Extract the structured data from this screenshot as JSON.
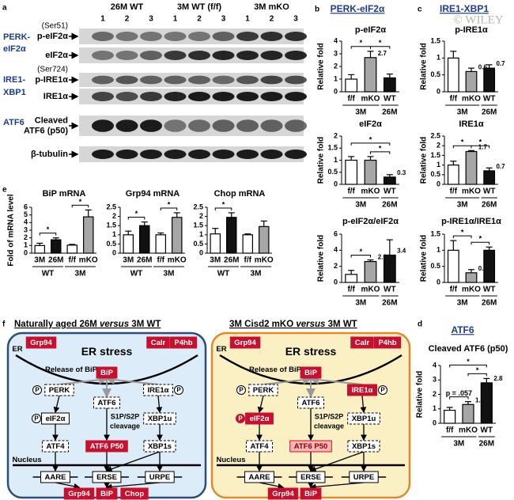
{
  "watermark": "© WILEY",
  "panel_letters": [
    "a",
    "b",
    "c",
    "d",
    "e",
    "f"
  ],
  "sections": {
    "b": "PERK-eIF2α",
    "c": "IRE1-XBP1",
    "d": "ATF6"
  },
  "blot": {
    "groups": [
      {
        "label": "26M WT",
        "lanes": [
          "1",
          "2",
          "3"
        ]
      },
      {
        "label": "3M WT (f/f)",
        "lanes": [
          "1",
          "2",
          "3"
        ]
      },
      {
        "label": "3M mKO",
        "lanes": [
          "1",
          "2",
          "3"
        ]
      }
    ],
    "pathways": [
      [
        "PERK-",
        "eIF2α"
      ],
      [
        "IRE1-",
        "XBP1"
      ],
      [
        "ATF6"
      ]
    ],
    "rows": [
      {
        "label": [
          "p-eIF2α"
        ],
        "note": "(Ser51)"
      },
      {
        "label": [
          "eIF2α"
        ]
      },
      {
        "label": [
          "p-IRE1α"
        ],
        "note": "(Ser724)"
      },
      {
        "label": [
          "IRE1α"
        ]
      },
      {
        "label": [
          "Cleaved",
          "ATF6 (p50)"
        ]
      },
      {
        "label": [
          "β-tubulin"
        ]
      }
    ]
  },
  "chart_data": [
    {
      "type": "bar",
      "title": "p-eIF2α",
      "y_label": "Relative fold",
      "categories": [
        "f/f",
        "mKO",
        "WT"
      ],
      "values": [
        1.0,
        2.7,
        1.1
      ],
      "errors": [
        0.35,
        0.5,
        0.3
      ],
      "value_labels": [
        null,
        "2.7",
        null
      ],
      "colors": [
        "#ffffff",
        "#a6a6a6",
        "#111111"
      ],
      "ylim": [
        0,
        4
      ],
      "yticks": [
        0,
        1,
        2,
        3,
        4
      ],
      "groups": [
        {
          "label": "3M",
          "categories": [
            "f/f",
            "mKO"
          ]
        },
        {
          "label": "26M",
          "categories": [
            "WT"
          ]
        }
      ],
      "significance": [
        {
          "between": [
            "f/f",
            "mKO"
          ],
          "label": "*"
        },
        {
          "between": [
            "mKO",
            "WT"
          ],
          "label": "*"
        }
      ]
    },
    {
      "type": "bar",
      "title": "eIF2α",
      "y_label": "Relative fold",
      "categories": [
        "f/f",
        "mKO",
        "WT"
      ],
      "values": [
        1.0,
        1.0,
        0.3
      ],
      "errors": [
        0.15,
        0.15,
        0.1
      ],
      "value_labels": [
        null,
        null,
        "0.3"
      ],
      "colors": [
        "#ffffff",
        "#a6a6a6",
        "#111111"
      ],
      "ylim": [
        0,
        2
      ],
      "yticks": [
        0,
        0.5,
        1,
        1.5,
        2
      ],
      "groups": [
        {
          "label": "3M",
          "categories": [
            "f/f",
            "mKO"
          ]
        },
        {
          "label": "26M",
          "categories": [
            "WT"
          ]
        }
      ],
      "significance": [
        {
          "between": [
            "mKO",
            "WT"
          ],
          "label": "*"
        },
        {
          "between": [
            "f/f",
            "WT"
          ],
          "label": "*"
        }
      ]
    },
    {
      "type": "bar",
      "title": "p-eIF2α/eIF2α",
      "y_label": "Relative fold",
      "categories": [
        "f/f",
        "mKO",
        "WT"
      ],
      "values": [
        1.0,
        2.6,
        3.4
      ],
      "errors": [
        0.5,
        0.2,
        1.9
      ],
      "value_labels": [
        null,
        "2.6",
        "3.4"
      ],
      "colors": [
        "#ffffff",
        "#a6a6a6",
        "#111111"
      ],
      "ylim": [
        0,
        6
      ],
      "yticks": [
        0,
        2,
        4,
        6
      ],
      "groups": [
        {
          "label": "3M",
          "categories": [
            "f/f",
            "mKO"
          ]
        },
        {
          "label": "26M",
          "categories": [
            "WT"
          ]
        }
      ],
      "significance": [
        {
          "between": [
            "f/f",
            "mKO"
          ],
          "label": "*"
        }
      ]
    },
    {
      "type": "bar",
      "title": "p-IRE1α",
      "y_label": "Relative fold",
      "categories": [
        "f/f",
        "mKO",
        "WT"
      ],
      "values": [
        1.0,
        0.6,
        0.7
      ],
      "errors": [
        0.2,
        0.1,
        0.1
      ],
      "value_labels": [
        null,
        "0.6",
        "0.7"
      ],
      "colors": [
        "#ffffff",
        "#a6a6a6",
        "#111111"
      ],
      "ylim": [
        0,
        1.5
      ],
      "yticks": [
        0,
        0.5,
        1,
        1.5
      ],
      "groups": [
        {
          "label": "3M",
          "categories": [
            "f/f",
            "mKO"
          ]
        },
        {
          "label": "26M",
          "categories": [
            "WT"
          ]
        }
      ]
    },
    {
      "type": "bar",
      "title": "IRE1α",
      "y_label": "Relative fold",
      "categories": [
        "f/f",
        "mKO",
        "WT"
      ],
      "values": [
        1.0,
        1.7,
        0.7
      ],
      "errors": [
        0.2,
        0.05,
        0.15
      ],
      "value_labels": [
        null,
        "1.7",
        "0.7"
      ],
      "colors": [
        "#ffffff",
        "#a6a6a6",
        "#111111"
      ],
      "ylim": [
        0,
        2.5
      ],
      "yticks": [
        0,
        0.5,
        1,
        1.5,
        2,
        2.5
      ],
      "groups": [
        {
          "label": "3M",
          "categories": [
            "f/f",
            "mKO"
          ]
        },
        {
          "label": "26M",
          "categories": [
            "WT"
          ]
        }
      ],
      "significance": [
        {
          "between": [
            "f/f",
            "mKO"
          ],
          "label": "*"
        },
        {
          "between": [
            "mKO",
            "WT"
          ],
          "label": "*"
        }
      ]
    },
    {
      "type": "bar",
      "title": "p-IRE1α/IRE1α",
      "y_label": "Relative fold",
      "categories": [
        "f/f",
        "mKO",
        "WT"
      ],
      "values": [
        1.0,
        0.3,
        1.0
      ],
      "errors": [
        0.3,
        0.1,
        0.1
      ],
      "value_labels": [
        null,
        "0.3",
        null
      ],
      "colors": [
        "#ffffff",
        "#a6a6a6",
        "#111111"
      ],
      "ylim": [
        0,
        1.5
      ],
      "yticks": [
        0,
        0.5,
        1,
        1.5
      ],
      "groups": [
        {
          "label": "3M",
          "categories": [
            "f/f",
            "mKO"
          ]
        },
        {
          "label": "26M",
          "categories": [
            "WT"
          ]
        }
      ],
      "significance": [
        {
          "between": [
            "f/f",
            "mKO"
          ],
          "label": "*"
        },
        {
          "between": [
            "mKO",
            "WT"
          ],
          "label": "*"
        }
      ]
    },
    {
      "type": "bar",
      "title": "BiP mRNA",
      "y_label": "Fold of mRNA level",
      "categories": [
        "3M",
        "26M",
        "f/f",
        "mKO"
      ],
      "values": [
        1.0,
        1.75,
        1.05,
        4.75
      ],
      "errors": [
        0.3,
        0.25,
        0.1,
        0.9
      ],
      "colors": [
        "#ffffff",
        "#111111",
        "#ffffff",
        "#a6a6a6"
      ],
      "ylim": [
        0,
        6
      ],
      "yticks": [
        0,
        1,
        2,
        3,
        4,
        5,
        6
      ],
      "groups": [
        {
          "label": "WT",
          "categories": [
            "3M",
            "26M"
          ]
        },
        {
          "label": "3M",
          "categories": [
            "f/f",
            "mKO"
          ]
        }
      ],
      "significance": [
        {
          "between": [
            "3M",
            "26M"
          ],
          "label": "*"
        },
        {
          "between": [
            "f/f",
            "mKO"
          ],
          "label": "*"
        }
      ]
    },
    {
      "type": "bar",
      "title": "Grp94 mRNA",
      "categories": [
        "3M",
        "26M",
        "f/f",
        "mKO"
      ],
      "values": [
        1.0,
        1.5,
        1.0,
        1.95
      ],
      "errors": [
        0.2,
        0.2,
        0.1,
        0.25
      ],
      "colors": [
        "#ffffff",
        "#111111",
        "#ffffff",
        "#a6a6a6"
      ],
      "ylim": [
        0,
        2.5
      ],
      "yticks": [
        0,
        0.5,
        1,
        1.5,
        2,
        2.5
      ],
      "groups": [
        {
          "label": "WT",
          "categories": [
            "3M",
            "26M"
          ]
        },
        {
          "label": "3M",
          "categories": [
            "f/f",
            "mKO"
          ]
        }
      ],
      "significance": [
        {
          "between": [
            "3M",
            "26M"
          ],
          "label": "*"
        },
        {
          "between": [
            "f/f",
            "mKO"
          ],
          "label": "*"
        }
      ]
    },
    {
      "type": "bar",
      "title": "Chop mRNA",
      "categories": [
        "3M",
        "26M",
        "f/f",
        "mKO"
      ],
      "values": [
        1.05,
        1.95,
        1.0,
        1.45
      ],
      "errors": [
        0.3,
        0.25,
        0.05,
        0.3
      ],
      "colors": [
        "#ffffff",
        "#111111",
        "#ffffff",
        "#a6a6a6"
      ],
      "ylim": [
        0,
        2.5
      ],
      "yticks": [
        0,
        0.5,
        1,
        1.5,
        2,
        2.5
      ],
      "groups": [
        {
          "label": "WT",
          "categories": [
            "3M",
            "26M"
          ]
        },
        {
          "label": "3M",
          "categories": [
            "f/f",
            "mKO"
          ]
        }
      ],
      "significance": [
        {
          "between": [
            "3M",
            "26M"
          ],
          "label": "*"
        }
      ]
    },
    {
      "type": "bar",
      "title": "Cleaved ATF6 (p50)",
      "y_label": "Relative fold",
      "categories": [
        "f/f",
        "mKO",
        "WT"
      ],
      "values": [
        0.9,
        1.3,
        2.8
      ],
      "errors": [
        0.2,
        0.2,
        0.3
      ],
      "value_labels": [
        null,
        "1.3",
        "2.8"
      ],
      "colors": [
        "#ffffff",
        "#a6a6a6",
        "#111111"
      ],
      "ylim": [
        0,
        4
      ],
      "yticks": [
        0,
        1,
        2,
        3,
        4
      ],
      "groups": [
        {
          "label": "3M",
          "categories": [
            "f/f",
            "mKO"
          ]
        },
        {
          "label": "26M",
          "categories": [
            "WT"
          ]
        }
      ],
      "significance": [
        {
          "between": [
            "f/f",
            "mKO"
          ],
          "label": "p = .057"
        },
        {
          "between": [
            "mKO",
            "WT"
          ],
          "label": "*"
        },
        {
          "between": [
            "f/f",
            "WT"
          ],
          "label": "*"
        }
      ]
    }
  ],
  "diagrams": [
    {
      "title": [
        "Naturally aged 26M ",
        "versus",
        " 3M WT"
      ],
      "nodes": [
        {
          "label": "ER",
          "style": "text"
        },
        {
          "label": "Grp94",
          "style": "red"
        },
        {
          "label": "ER stress",
          "style": "heading"
        },
        {
          "label": "Calr",
          "style": "red"
        },
        {
          "label": "P4hb",
          "style": "red"
        },
        {
          "label": "Release of BiP",
          "style": "text"
        },
        {
          "label": "BiP",
          "style": "red"
        },
        {
          "label": "PERK",
          "style": "dashed"
        },
        {
          "label": "ATF6",
          "style": "dashed"
        },
        {
          "label": "IRE1α",
          "style": "dashed"
        },
        {
          "label": "eIF2α",
          "style": "solid"
        },
        {
          "label": [
            "S1P/S2P",
            "cleavage"
          ],
          "style": "text"
        },
        {
          "label": "XBP1u",
          "style": "dashed"
        },
        {
          "label": "ATF4",
          "style": "dashed"
        },
        {
          "label": "ATF6 P50",
          "style": "red"
        },
        {
          "label": "XBP1s",
          "style": "dashed"
        },
        {
          "label": "Nucleus",
          "style": "text"
        },
        {
          "label": "AARE",
          "style": "gene"
        },
        {
          "label": "ERSE",
          "style": "gene"
        },
        {
          "label": "URPE",
          "style": "gene"
        },
        {
          "label": "P",
          "style": "phospho"
        },
        {
          "label": "P",
          "style": "phospho"
        },
        {
          "label": "P",
          "style": "phospho"
        },
        {
          "label": "Grp94",
          "style": "red"
        },
        {
          "label": "BiP",
          "style": "red"
        },
        {
          "label": "Chop",
          "style": "red"
        }
      ]
    },
    {
      "title": [
        "3M Cisd2 mKO ",
        "versus",
        " 3M WT"
      ],
      "nodes": [
        {
          "label": "ER",
          "style": "text"
        },
        {
          "label": "Grp94",
          "style": "red"
        },
        {
          "label": "ER stress",
          "style": "heading"
        },
        {
          "label": "Calr",
          "style": "red"
        },
        {
          "label": "P4hb",
          "style": "red"
        },
        {
          "label": "Release of BiP",
          "style": "text"
        },
        {
          "label": "BiP",
          "style": "red"
        },
        {
          "label": "PERK",
          "style": "dashed"
        },
        {
          "label": "ATF6",
          "style": "dashed"
        },
        {
          "label": "IRE1α",
          "style": "red"
        },
        {
          "label": "eIF2α",
          "style": "red"
        },
        {
          "label": [
            "S1P/S2P",
            "cleavage"
          ],
          "style": "text"
        },
        {
          "label": "XBP1u",
          "style": "dashed"
        },
        {
          "label": "ATF4",
          "style": "dashed"
        },
        {
          "label": "ATF6 P50",
          "style": "pink"
        },
        {
          "label": "XBP1s",
          "style": "dashed"
        },
        {
          "label": "Nucleus",
          "style": "text"
        },
        {
          "label": "AARE",
          "style": "gene"
        },
        {
          "label": "ERSE",
          "style": "gene"
        },
        {
          "label": "URPE",
          "style": "gene"
        },
        {
          "label": "P",
          "style": "phospho"
        },
        {
          "label": "P",
          "style": "phospho"
        },
        {
          "label": "P",
          "style": "phospho-red"
        },
        {
          "label": "Grp94",
          "style": "red"
        },
        {
          "label": "BiP",
          "style": "red"
        }
      ]
    }
  ]
}
